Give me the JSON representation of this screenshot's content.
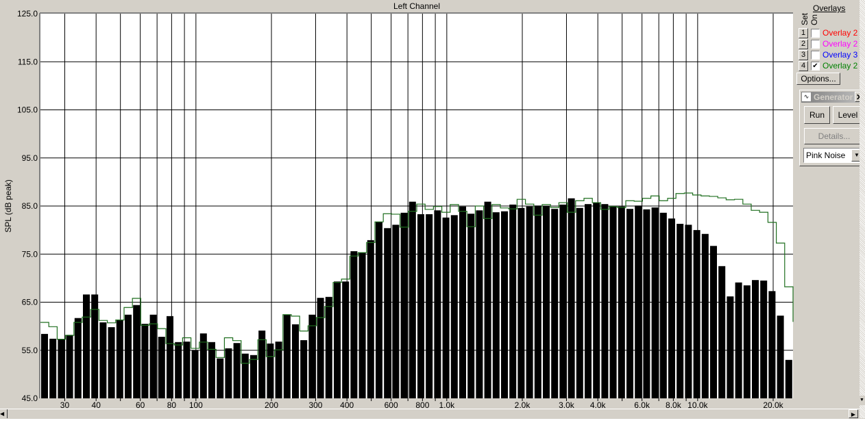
{
  "chart_data": {
    "type": "bar",
    "title": "Left Channel",
    "ylabel": "SPL (dB peak)",
    "xlabel": "",
    "x_scale": "log",
    "xlim_hz": [
      24,
      24000
    ],
    "ylim": [
      45,
      125
    ],
    "yticks": [
      "45.0",
      "55.0",
      "65.0",
      "75.0",
      "85.0",
      "95.0",
      "105.0",
      "115.0",
      "125.0"
    ],
    "xticks": [
      {
        "f": 30,
        "label": "30"
      },
      {
        "f": 40,
        "label": "40"
      },
      {
        "f": 60,
        "label": "60"
      },
      {
        "f": 80,
        "label": "80"
      },
      {
        "f": 100,
        "label": "100"
      },
      {
        "f": 200,
        "label": "200"
      },
      {
        "f": 300,
        "label": "300"
      },
      {
        "f": 400,
        "label": "400"
      },
      {
        "f": 600,
        "label": "600"
      },
      {
        "f": 800,
        "label": "800"
      },
      {
        "f": 1000,
        "label": "1.0k"
      },
      {
        "f": 2000,
        "label": "2.0k"
      },
      {
        "f": 3000,
        "label": "3.0k"
      },
      {
        "f": 4000,
        "label": "4.0k"
      },
      {
        "f": 6000,
        "label": "6.0k"
      },
      {
        "f": 8000,
        "label": "8.0k"
      },
      {
        "f": 10000,
        "label": "10.0k"
      },
      {
        "f": 20000,
        "label": "20.0k"
      }
    ],
    "grid": true,
    "bar_color": "#000000",
    "overlay_color": "#1e6e1e",
    "bars_db": [
      58.4,
      57.4,
      57.3,
      58.2,
      61.7,
      66.6,
      66.6,
      60.8,
      59.8,
      61.3,
      62.4,
      64.4,
      60.5,
      62.4,
      57.8,
      62.1,
      56.7,
      56.8,
      55.0,
      58.5,
      56.7,
      53.3,
      55.4,
      56.5,
      54.3,
      54.0,
      59.1,
      56.4,
      56.8,
      62.4,
      60.4,
      57.1,
      62.4,
      65.9,
      66.1,
      69.3,
      69.3,
      75.6,
      75.3,
      77.9,
      81.7,
      80.4,
      81.1,
      83.6,
      85.9,
      83.3,
      83.3,
      84.1,
      82.6,
      83.1,
      84.9,
      83.4,
      84.1,
      85.9,
      83.7,
      83.9,
      85.3,
      84.6,
      84.9,
      85.1,
      85.0,
      84.4,
      85.3,
      86.6,
      84.6,
      85.4,
      85.7,
      85.4,
      84.9,
      84.9,
      84.4,
      85.1,
      84.3,
      84.7,
      83.6,
      82.4,
      81.3,
      81.1,
      80.0,
      79.2,
      76.7,
      72.5,
      66.2,
      69.1,
      68.5,
      69.6,
      69.5,
      67.3,
      62.2,
      53.0
    ],
    "overlay_db": [
      60.8,
      59.9,
      57.3,
      58.1,
      60.8,
      61.9,
      63.5,
      61.2,
      60.7,
      61.3,
      63.9,
      65.8,
      60.2,
      60.5,
      59.5,
      56.4,
      56.1,
      57.6,
      55.4,
      56.7,
      55.2,
      53.5,
      57.6,
      57.0,
      52.3,
      53.1,
      57.2,
      53.7,
      55.1,
      62.4,
      62.1,
      59.0,
      60.1,
      61.8,
      64.1,
      69.1,
      69.8,
      74.6,
      75.3,
      77.4,
      81.7,
      83.4,
      83.3,
      80.6,
      83.9,
      85.4,
      84.3,
      84.9,
      83.7,
      85.3,
      83.9,
      80.7,
      85.0,
      82.4,
      85.3,
      84.6,
      84.4,
      86.4,
      85.4,
      83.1,
      85.3,
      84.7,
      85.7,
      83.7,
      86.1,
      86.6,
      85.7,
      84.3,
      84.9,
      84.7,
      86.1,
      86.0,
      86.6,
      87.1,
      86.1,
      86.6,
      87.6,
      87.7,
      87.3,
      87.1,
      87.0,
      86.7,
      86.3,
      86.4,
      85.4,
      84.1,
      83.7,
      81.6,
      77.3,
      68.2
    ],
    "overlay_end_db": 60.9
  },
  "overlays": {
    "header": "Overlays",
    "col_set": "Set",
    "col_on": "On",
    "rows": [
      {
        "set": "1",
        "name": "Overlay 2",
        "color": "#ff0000",
        "on": false
      },
      {
        "set": "2",
        "name": "Overlay 2",
        "color": "#ff00ff",
        "on": false
      },
      {
        "set": "3",
        "name": "Overlay 3",
        "color": "#0000ff",
        "on": false
      },
      {
        "set": "4",
        "name": "Overlay 2",
        "color": "#008000",
        "on": true
      }
    ],
    "options_label": "Options..."
  },
  "generator": {
    "title": "Generator",
    "run_label": "Run",
    "level_label": "Level",
    "details_label": "Details...",
    "signal": "Pink Noise"
  }
}
